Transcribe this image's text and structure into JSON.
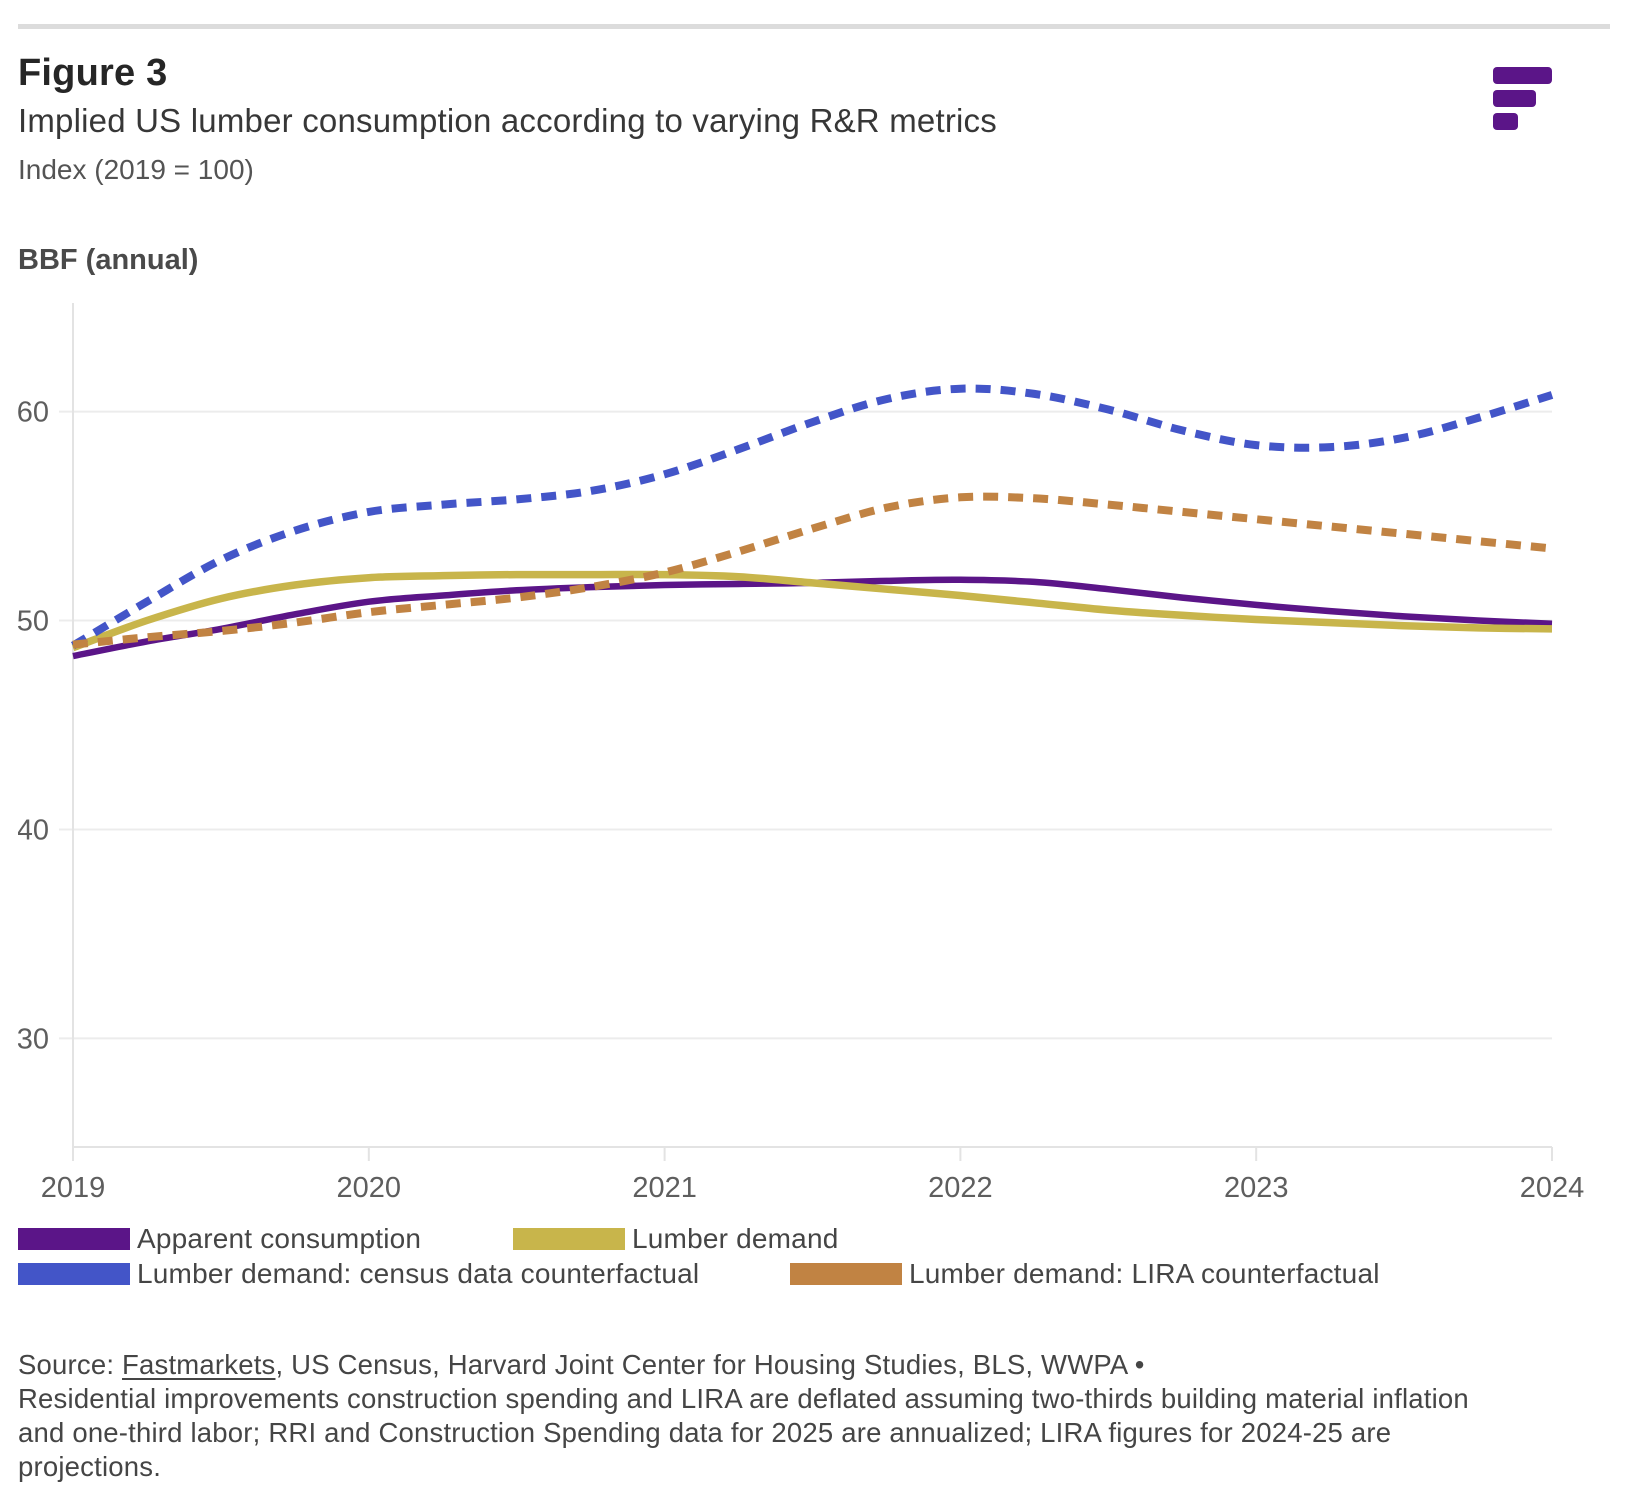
{
  "page": {
    "figure_label": "Figure 3",
    "title": "Implied US lumber consumption according to varying R&R metrics",
    "index_note": "Index (2019 = 100)",
    "unit_label": "BBF (annual)"
  },
  "logo": {
    "name": "fastmarkets-logo",
    "color": "#5b1588"
  },
  "chart_data": {
    "type": "line",
    "title": "Implied US lumber consumption according to varying R&R metrics",
    "xlabel": "",
    "ylabel": "BBF (annual)",
    "xlim": [
      2019,
      2024
    ],
    "ylim": [
      24.8,
      65.2
    ],
    "x_ticks": [
      2019,
      2020,
      2021,
      2022,
      2023,
      2024
    ],
    "y_ticks": [
      30,
      40,
      50,
      60
    ],
    "grid": "horizontal",
    "legend_position": "bottom",
    "x": [
      2019,
      2019.25,
      2019.5,
      2019.75,
      2020,
      2020.25,
      2020.5,
      2020.75,
      2021,
      2021.25,
      2021.5,
      2021.75,
      2022,
      2022.25,
      2022.5,
      2022.75,
      2023,
      2023.25,
      2023.5,
      2023.75,
      2024
    ],
    "series": [
      {
        "name": "Apparent consumption",
        "color": "#5b1588",
        "style": "solid",
        "width": 6.5,
        "values": [
          48.3,
          49.0,
          49.6,
          50.3,
          50.9,
          51.2,
          51.45,
          51.6,
          51.7,
          51.75,
          51.8,
          51.9,
          51.95,
          51.85,
          51.5,
          51.1,
          50.75,
          50.45,
          50.2,
          50.0,
          49.85
        ]
      },
      {
        "name": "Lumber demand",
        "color": "#c8b54b",
        "style": "solid",
        "width": 7.5,
        "values": [
          48.7,
          50.0,
          51.05,
          51.7,
          52.05,
          52.15,
          52.2,
          52.2,
          52.2,
          52.1,
          51.8,
          51.5,
          51.2,
          50.85,
          50.5,
          50.25,
          50.05,
          49.9,
          49.75,
          49.65,
          49.6
        ]
      },
      {
        "name": "Lumber demand: census data counterfactual",
        "color": "#4355c8",
        "style": "dashed",
        "width": 8,
        "values": [
          48.8,
          50.9,
          52.9,
          54.3,
          55.2,
          55.55,
          55.8,
          56.2,
          57.0,
          58.2,
          59.5,
          60.6,
          61.1,
          60.85,
          60.1,
          59.1,
          58.4,
          58.3,
          58.75,
          59.7,
          60.8
        ]
      },
      {
        "name": "Lumber demand: LIRA counterfactual",
        "color": "#c18343",
        "style": "dashed",
        "width": 8,
        "values": [
          48.85,
          49.2,
          49.5,
          49.9,
          50.4,
          50.75,
          51.1,
          51.6,
          52.3,
          53.3,
          54.4,
          55.4,
          55.9,
          55.85,
          55.55,
          55.2,
          54.85,
          54.5,
          54.15,
          53.8,
          53.45
        ]
      }
    ]
  },
  "legend": {
    "items": [
      {
        "label": "Apparent consumption",
        "color": "#5b1588"
      },
      {
        "label": "Lumber demand",
        "color": "#c8b54b"
      },
      {
        "label": "Lumber demand: census data counterfactual",
        "color": "#4355c8"
      },
      {
        "label": "Lumber demand: LIRA counterfactual",
        "color": "#c18343"
      }
    ]
  },
  "source": {
    "prefix": "Source: ",
    "link": "Fastmarkets",
    "line1_rest": ", US Census, Harvard Joint Center for Housing Studies, BLS, WWPA •",
    "line2": "Residential improvements construction spending and LIRA are deflated assuming two-thirds building material inflation",
    "line3": "and one-third labor; RRI and Construction Spending data for 2025 are annualized; LIRA figures for 2024-25 are",
    "line4": "projections."
  },
  "theme": {
    "grid_color": "#ececec",
    "axis_color": "#e3e3e3",
    "tick_label_color": "#5e5e5e",
    "top_rule_color": "#dcdcdc"
  }
}
